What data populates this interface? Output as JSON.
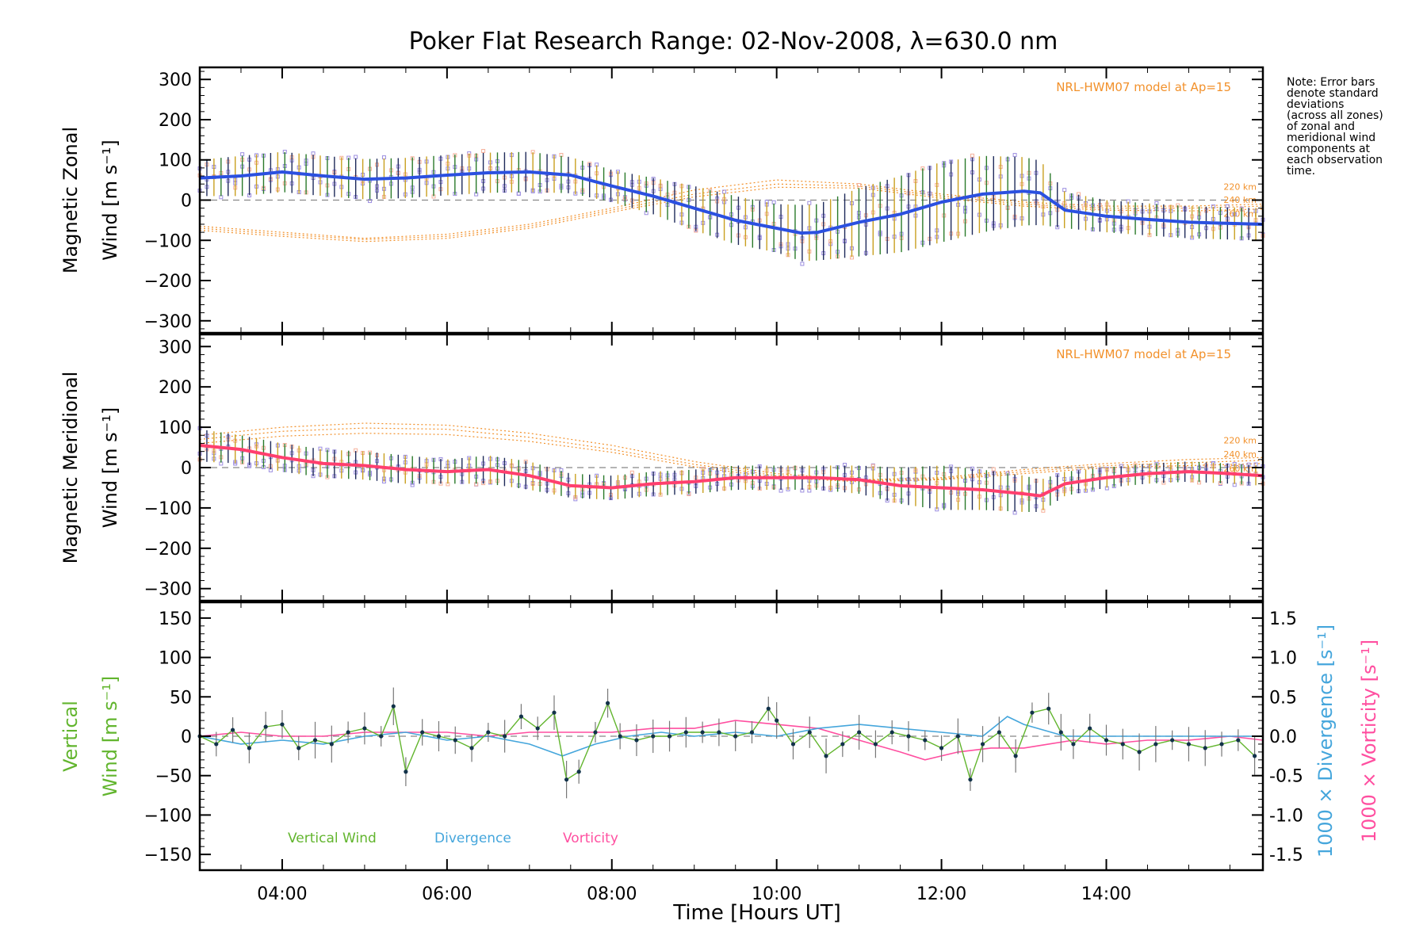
{
  "colors": {
    "zonal": "#2b50e0",
    "meridional": "#ff3f6e",
    "vertical": "#62b52e",
    "divergence": "#45a6dc",
    "vorticity": "#ff4fa0",
    "model": "#f2912b",
    "axis": "#000000",
    "zero_line": "#888888",
    "zone_marks": "#9c8ee0"
  },
  "chart_data": [
    {
      "type": "line",
      "panel": "zonal",
      "title": "Poker Flat Research Range: 02-Nov-2008, λ=630.0 nm",
      "ylabel_line1": "Magnetic Zonal",
      "ylabel_line2": "Wind [m s⁻¹]",
      "xlim": [
        3.0,
        15.9
      ],
      "ylim": [
        -330,
        330
      ],
      "yticks": [
        -300,
        -200,
        -100,
        0,
        100,
        200,
        300
      ],
      "x": [
        3.0,
        3.5,
        4.0,
        4.5,
        5.0,
        5.5,
        6.0,
        6.5,
        7.0,
        7.5,
        8.0,
        8.5,
        9.0,
        9.5,
        10.0,
        10.3,
        10.5,
        11.0,
        11.5,
        12.0,
        12.5,
        13.0,
        13.2,
        13.5,
        14.0,
        14.5,
        15.0,
        15.5,
        15.9
      ],
      "y": [
        55,
        60,
        70,
        60,
        52,
        55,
        62,
        68,
        70,
        62,
        35,
        10,
        -20,
        -50,
        -70,
        -82,
        -80,
        -55,
        -35,
        -5,
        15,
        22,
        18,
        -25,
        -40,
        -48,
        -55,
        -58,
        -60
      ],
      "errors": [
        45,
        50,
        50,
        50,
        50,
        50,
        50,
        50,
        50,
        45,
        40,
        45,
        55,
        60,
        60,
        70,
        70,
        85,
        95,
        100,
        95,
        85,
        80,
        45,
        40,
        40,
        40,
        40,
        40
      ],
      "model_label": "NRL-HWM07 model at Ap=15",
      "model_curves": [
        {
          "label": "220 km",
          "x": [
            3.0,
            4.0,
            5.0,
            6.0,
            7.0,
            8.0,
            9.0,
            10.0,
            11.0,
            12.0,
            13.0,
            14.0,
            15.0,
            15.9
          ],
          "y": [
            -65,
            -80,
            -95,
            -85,
            -60,
            -20,
            25,
            50,
            40,
            15,
            -5,
            -15,
            -15,
            -10
          ]
        },
        {
          "label": "240 km",
          "x": [
            3.0,
            4.0,
            5.0,
            6.0,
            7.0,
            8.0,
            9.0,
            10.0,
            11.0,
            12.0,
            13.0,
            14.0,
            15.0,
            15.9
          ],
          "y": [
            -70,
            -85,
            -98,
            -90,
            -65,
            -25,
            15,
            40,
            35,
            10,
            -10,
            -20,
            -20,
            -15
          ]
        },
        {
          "label": "260 km",
          "x": [
            3.0,
            4.0,
            5.0,
            6.0,
            7.0,
            8.0,
            9.0,
            10.0,
            11.0,
            12.0,
            13.0,
            14.0,
            15.0,
            15.9
          ],
          "y": [
            -75,
            -90,
            -103,
            -95,
            -70,
            -30,
            8,
            32,
            30,
            5,
            -15,
            -25,
            -27,
            -22
          ]
        }
      ]
    },
    {
      "type": "line",
      "panel": "meridional",
      "ylabel_line1": "Magnetic Meridional",
      "ylabel_line2": "Wind [m s⁻¹]",
      "xlim": [
        3.0,
        15.9
      ],
      "ylim": [
        -330,
        330
      ],
      "yticks": [
        -300,
        -200,
        -100,
        0,
        100,
        200,
        300
      ],
      "x": [
        3.0,
        3.5,
        4.0,
        4.5,
        5.0,
        5.5,
        6.0,
        6.5,
        7.0,
        7.5,
        8.0,
        8.5,
        9.0,
        9.5,
        10.0,
        10.5,
        11.0,
        11.5,
        12.0,
        12.5,
        13.0,
        13.2,
        13.5,
        14.0,
        14.5,
        15.0,
        15.5,
        15.9
      ],
      "y": [
        55,
        45,
        25,
        10,
        5,
        -5,
        -10,
        -5,
        -20,
        -45,
        -50,
        -40,
        -35,
        -25,
        -25,
        -25,
        -30,
        -45,
        -50,
        -55,
        -65,
        -70,
        -40,
        -25,
        -15,
        -10,
        -15,
        -20
      ],
      "errors": [
        40,
        35,
        35,
        35,
        35,
        35,
        30,
        35,
        35,
        30,
        30,
        30,
        30,
        30,
        30,
        30,
        35,
        45,
        55,
        50,
        45,
        40,
        30,
        25,
        25,
        25,
        25,
        25
      ],
      "model_label": "NRL-HWM07 model at Ap=15",
      "model_curves": [
        {
          "label": "220 km",
          "x": [
            3.0,
            4.0,
            5.0,
            6.0,
            7.0,
            8.0,
            9.0,
            10.0,
            11.0,
            12.0,
            13.0,
            14.0,
            15.0,
            15.9
          ],
          "y": [
            80,
            100,
            110,
            105,
            85,
            55,
            15,
            -15,
            -30,
            -25,
            -5,
            10,
            20,
            25
          ]
        },
        {
          "label": "240 km",
          "x": [
            3.0,
            4.0,
            5.0,
            6.0,
            7.0,
            8.0,
            9.0,
            10.0,
            11.0,
            12.0,
            13.0,
            14.0,
            15.0,
            15.9
          ],
          "y": [
            70,
            90,
            98,
            95,
            75,
            45,
            8,
            -20,
            -32,
            -28,
            -10,
            5,
            12,
            18
          ]
        },
        {
          "label": "260 km",
          "x": [
            3.0,
            4.0,
            5.0,
            6.0,
            7.0,
            8.0,
            9.0,
            10.0,
            11.0,
            12.0,
            13.0,
            14.0,
            15.0,
            15.9
          ],
          "y": [
            60,
            78,
            85,
            82,
            65,
            38,
            2,
            -25,
            -35,
            -30,
            -15,
            0,
            5,
            10
          ]
        }
      ]
    },
    {
      "type": "line",
      "panel": "vertical",
      "ylabel_line1": "Vertical",
      "ylabel_line2": "Wind [m s⁻¹]",
      "ylabel_right1": "1000 × Divergence [s⁻¹]",
      "ylabel_right2": "1000 × Vorticity [s⁻¹]",
      "xlim": [
        3.0,
        15.9
      ],
      "ylim": [
        -170,
        170
      ],
      "yticks": [
        -150,
        -100,
        -50,
        0,
        50,
        100,
        150
      ],
      "y2lim": [
        -1.7,
        1.7
      ],
      "y2ticks": [
        -1.5,
        -1.0,
        -0.5,
        0.0,
        0.5,
        1.0,
        1.5
      ],
      "xlabel": "Time [Hours UT]",
      "xticks": [
        4,
        6,
        8,
        10,
        12,
        14
      ],
      "xtick_labels": [
        "04:00",
        "06:00",
        "08:00",
        "10:00",
        "12:00",
        "14:00"
      ],
      "series": [
        {
          "name": "Vertical Wind",
          "x": [
            3.0,
            3.2,
            3.4,
            3.6,
            3.8,
            4.0,
            4.2,
            4.4,
            4.6,
            4.8,
            5.0,
            5.2,
            5.35,
            5.5,
            5.7,
            5.9,
            6.1,
            6.3,
            6.5,
            6.7,
            6.9,
            7.1,
            7.3,
            7.45,
            7.6,
            7.8,
            7.95,
            8.1,
            8.3,
            8.5,
            8.7,
            8.9,
            9.1,
            9.3,
            9.5,
            9.7,
            9.9,
            10.0,
            10.2,
            10.4,
            10.6,
            10.8,
            11.0,
            11.2,
            11.4,
            11.6,
            11.8,
            12.0,
            12.2,
            12.35,
            12.5,
            12.7,
            12.9,
            13.1,
            13.3,
            13.45,
            13.6,
            13.8,
            14.0,
            14.2,
            14.4,
            14.6,
            14.8,
            15.0,
            15.2,
            15.4,
            15.6,
            15.8
          ],
          "y": [
            0,
            -10,
            8,
            -15,
            12,
            15,
            -15,
            -5,
            -10,
            5,
            10,
            0,
            38,
            -45,
            5,
            0,
            -5,
            -15,
            5,
            0,
            25,
            10,
            30,
            -55,
            -45,
            5,
            42,
            0,
            -5,
            0,
            0,
            5,
            5,
            5,
            0,
            5,
            35,
            20,
            -10,
            5,
            -25,
            -10,
            5,
            -10,
            5,
            0,
            -5,
            -15,
            0,
            -55,
            -10,
            5,
            -25,
            30,
            35,
            5,
            -10,
            10,
            -5,
            -10,
            -20,
            -10,
            -5,
            -10,
            -15,
            -10,
            -5,
            -25
          ]
        },
        {
          "name": "Divergence",
          "x": [
            3.0,
            3.5,
            4.0,
            4.5,
            5.0,
            5.5,
            6.0,
            6.5,
            7.0,
            7.4,
            7.8,
            8.2,
            8.6,
            9.0,
            9.5,
            10.0,
            10.5,
            11.0,
            11.5,
            12.0,
            12.5,
            12.8,
            13.0,
            13.5,
            14.0,
            14.5,
            15.0,
            15.5,
            15.9
          ],
          "y": [
            0.0,
            -0.1,
            -0.05,
            -0.1,
            0.0,
            0.05,
            -0.05,
            0.0,
            -0.1,
            -0.25,
            -0.1,
            0.0,
            0.05,
            0.0,
            0.05,
            0.0,
            0.1,
            0.15,
            0.1,
            0.05,
            0.0,
            0.25,
            0.15,
            0.0,
            0.0,
            0.0,
            0.0,
            0.0,
            0.0
          ]
        },
        {
          "name": "Vorticity",
          "x": [
            3.0,
            3.5,
            4.0,
            4.5,
            5.0,
            5.5,
            6.0,
            6.5,
            7.0,
            7.5,
            8.0,
            8.5,
            9.0,
            9.5,
            10.0,
            10.5,
            11.0,
            11.5,
            11.8,
            12.2,
            12.6,
            13.0,
            13.3,
            13.6,
            14.0,
            14.5,
            15.0,
            15.5,
            15.9
          ],
          "y": [
            0.0,
            0.05,
            0.0,
            0.0,
            0.05,
            0.05,
            0.05,
            0.0,
            0.05,
            0.05,
            0.05,
            0.1,
            0.1,
            0.2,
            0.15,
            0.1,
            -0.05,
            -0.2,
            -0.3,
            -0.2,
            -0.15,
            -0.15,
            -0.1,
            -0.05,
            -0.1,
            -0.05,
            -0.05,
            0.0,
            -0.05
          ]
        }
      ]
    }
  ],
  "note": {
    "lines": [
      "Note: Error bars",
      "denote standard",
      "deviations",
      "(across all zones)",
      "of zonal and",
      "meridional wind",
      "components at",
      "each observation",
      "time."
    ]
  }
}
